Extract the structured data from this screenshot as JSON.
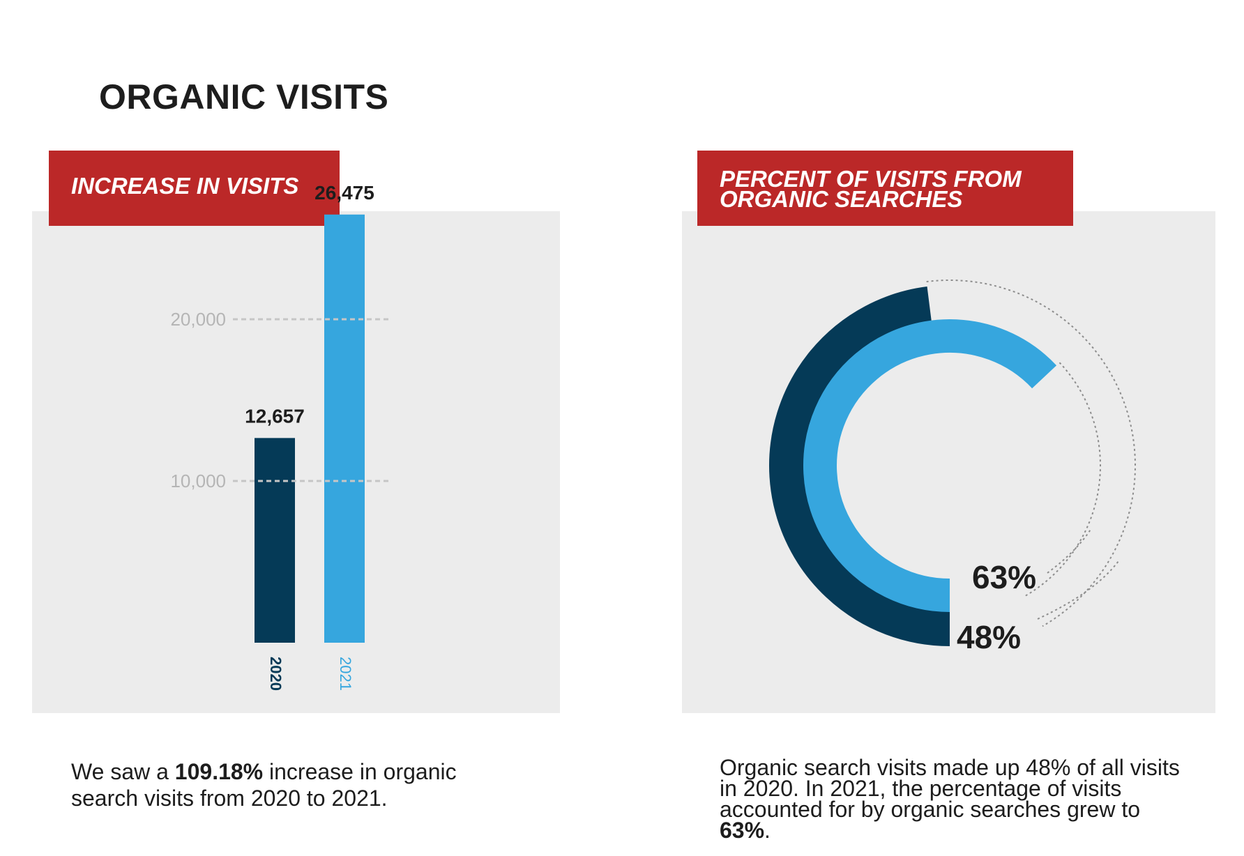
{
  "page": {
    "title": "ORGANIC VISITS"
  },
  "left_panel": {
    "banner": "INCREASE IN VISITS",
    "caption": {
      "before": "We saw a ",
      "highlight": "109.18%",
      "after": " increase in organic search visits from 2020 to 2021."
    }
  },
  "right_panel": {
    "banner_line1": "PERCENT OF VISITS FROM",
    "banner_line2": "ORGANIC SEARCHES",
    "caption": {
      "before": "Organic search visits made up 48% of all visits in 2020. In 2021, the percentage of visits accounted for by organic searches grew to ",
      "highlight": "63%",
      "after": "."
    }
  },
  "colors": {
    "banner": "#bb2828",
    "panel": "#ececec",
    "series_2020": "#053a57",
    "series_2021": "#36a6de",
    "gridline": "#bdbdbd",
    "tick_label": "#b5b5b5"
  },
  "chart_data": [
    {
      "type": "bar",
      "title": "INCREASE IN VISITS",
      "categories": [
        "2020",
        "2021"
      ],
      "values": [
        12657,
        26475
      ],
      "value_labels": [
        "12,657",
        "26,475"
      ],
      "y_ticks": [
        10000,
        20000
      ],
      "y_tick_labels": [
        "10,000",
        "20,000"
      ],
      "ylim": [
        0,
        30000
      ],
      "grid": "dashed lines at ticks",
      "colors": [
        "#053a57",
        "#36a6de"
      ]
    },
    {
      "type": "pie",
      "subtype": "radial progress rings",
      "title": "PERCENT OF VISITS FROM ORGANIC SEARCHES",
      "series": [
        {
          "values": [
            48
          ],
          "label": "48%",
          "year": "2020",
          "color": "#053a57"
        },
        {
          "values": [
            63
          ],
          "label": "63%",
          "year": "2021",
          "color": "#36a6de"
        }
      ],
      "max": 100
    }
  ]
}
